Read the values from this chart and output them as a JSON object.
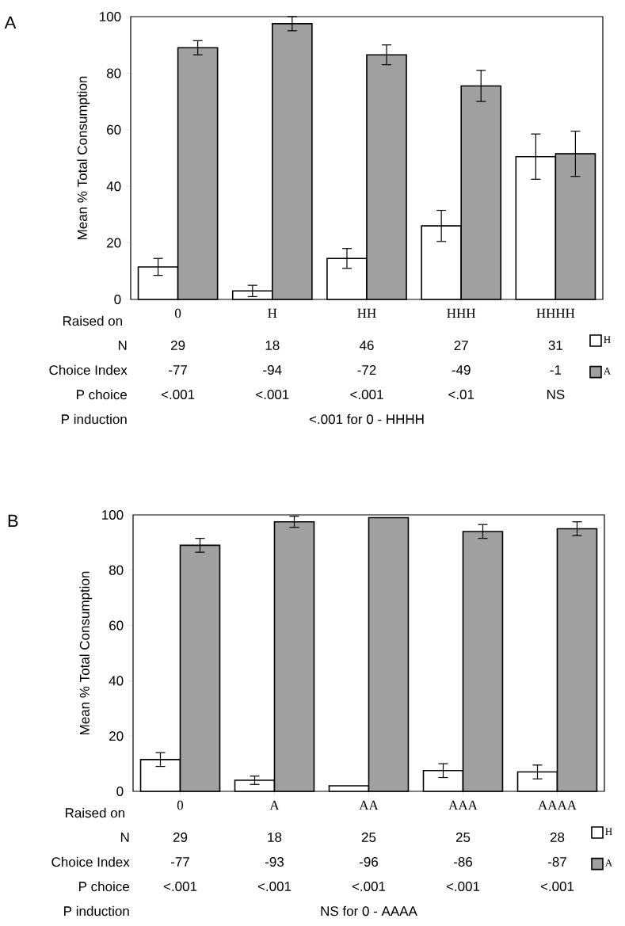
{
  "chart_data": [
    {
      "type": "bar",
      "title": "A",
      "ylabel": "Mean % Total Consumption",
      "xlabel": "Raised on",
      "categories": [
        "0",
        "H",
        "HH",
        "HHH",
        "HHHH"
      ],
      "series": [
        {
          "name": "H",
          "color": "#ffffff",
          "values": [
            11.5,
            3,
            14.5,
            26,
            50.5
          ],
          "errors": [
            3,
            2,
            3.5,
            5.5,
            8
          ]
        },
        {
          "name": "A",
          "color": "#a0a0a0",
          "values": [
            89,
            97.5,
            86.5,
            75.5,
            51.5
          ],
          "errors": [
            2.5,
            2.5,
            3.5,
            5.5,
            8
          ]
        }
      ],
      "ylim": [
        0,
        100
      ],
      "yticks": [
        0,
        20,
        40,
        60,
        80,
        100
      ],
      "legend": "bottom right",
      "annotations": [
        "N",
        "29",
        "18",
        "46",
        "27",
        "31",
        "Choice Index",
        "-77",
        "-94",
        "-72",
        "-49",
        "-1",
        "P choice",
        "<.001",
        "<.001",
        "<.001",
        "<.01",
        "NS",
        "P induction",
        "<.001 for 0 - HHHH"
      ]
    },
    {
      "type": "bar",
      "title": "B",
      "ylabel": "Mean % Total Consumption",
      "xlabel": "Raised on",
      "categories": [
        "0",
        "A",
        "AA",
        "AAA",
        "AAAA"
      ],
      "series": [
        {
          "name": "H",
          "color": "#ffffff",
          "values": [
            11.5,
            4,
            2,
            7.5,
            7
          ],
          "errors": [
            2.5,
            1.5,
            null,
            2.5,
            2.5
          ]
        },
        {
          "name": "A",
          "color": "#a0a0a0",
          "values": [
            89,
            97.5,
            99,
            94,
            95
          ],
          "errors": [
            2.5,
            2,
            null,
            2.5,
            2.5
          ]
        }
      ],
      "ylim": [
        0,
        100
      ],
      "yticks": [
        0,
        20,
        40,
        60,
        80,
        100
      ],
      "legend": "bottom right",
      "annotations": [
        "N",
        "29",
        "18",
        "25",
        "25",
        "28",
        "Choice Index",
        "-77",
        "-93",
        "-96",
        "-86",
        "-87",
        "P choice",
        "<.001",
        "<.001",
        "<.001",
        "<.001",
        "<.001",
        "P induction",
        "NS for 0 - AAAA"
      ]
    }
  ]
}
